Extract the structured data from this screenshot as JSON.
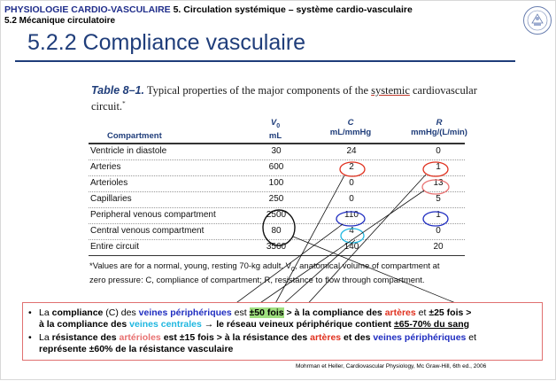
{
  "header": {
    "course_blue": "PHYSIOLOGIE CARDIO-VASCULAIRE",
    "course_rest": "5. Circulation systémique – système cardio-vasculaire",
    "section": "5.2 Mécanique circulatoire",
    "title": "5.2.2 Compliance vasculaire"
  },
  "table": {
    "caption_label": "Table 8–1.",
    "caption_text_a": "Typical properties of the major components of the ",
    "caption_text_ul": "systemic",
    "caption_text_b": "cardiovascular circuit.",
    "caption_mark": "*",
    "col_compartment": "Compartment",
    "col_v_sym": "V",
    "col_v_sub": "0",
    "col_v_unit": "mL",
    "col_c_sym": "C",
    "col_c_unit": "mL/mmHg",
    "col_r_sym": "R",
    "col_r_unit": "mmHg/(L/min)",
    "rows": [
      {
        "label": "Ventricle in diastole",
        "v": "30",
        "c": "24",
        "r": "0"
      },
      {
        "label": "Arteries",
        "v": "600",
        "c": "2",
        "r": "1"
      },
      {
        "label": "Arterioles",
        "v": "100",
        "c": "0",
        "r": "13"
      },
      {
        "label": "Capillaries",
        "v": "250",
        "c": "0",
        "r": "5"
      },
      {
        "label": "Peripheral venous compartment",
        "v": "2500",
        "c": "110",
        "r": "1"
      },
      {
        "label": "Central venous compartment",
        "v": "80",
        "c": "4",
        "r": "0"
      },
      {
        "label": "Entire circuit",
        "v": "3560",
        "c": "140",
        "r": "20"
      }
    ],
    "footnote_1": "*Values are for a normal, young, resting 70-kg adult. V",
    "footnote_sub": "0",
    "footnote_2": ", anatomical volume of compartment at",
    "footnote_3": "zero pressure: C, compliance of compartment; R, resistance to flow through compartment."
  },
  "bullets": {
    "b1": {
      "t1": "La ",
      "k1": "compliance",
      "t2": " (C) des ",
      "c1": "veines périphériques",
      "t3": " est ",
      "h1": "±50 fois",
      "k2": " > à la compliance des ",
      "c2": "artères",
      "t4": " et ",
      "k3": "±25 fois >",
      "l2a": "à la compliance des ",
      "c3": "veines centrales",
      "l2b": " → le réseau veineux périphérique contient ",
      "u1": "±65-70% du sang"
    },
    "b2": {
      "t1": "La ",
      "k1": "résistance des ",
      "c1": "artérioles",
      "k2": " est ±15 fois > à la résistance des ",
      "c2": "artères",
      "k3": " et des ",
      "c3": "veines périphériques",
      "t2": " et",
      "l2": "représente ±60% de la résistance vasculaire"
    },
    "dot": "•"
  },
  "source": "Mohrman et Heller, Cardiovascular Physiology, Mc Graw-Hill, 6th ed., 2006",
  "colors": {
    "title_blue": "#1f3d7a",
    "venous_blue": "#1f2dc0",
    "artery_red": "#e0301e",
    "arteriole_pink": "#e87070",
    "central_cyan": "#1fb7e0",
    "highlight_green": "#9fdf7f"
  }
}
